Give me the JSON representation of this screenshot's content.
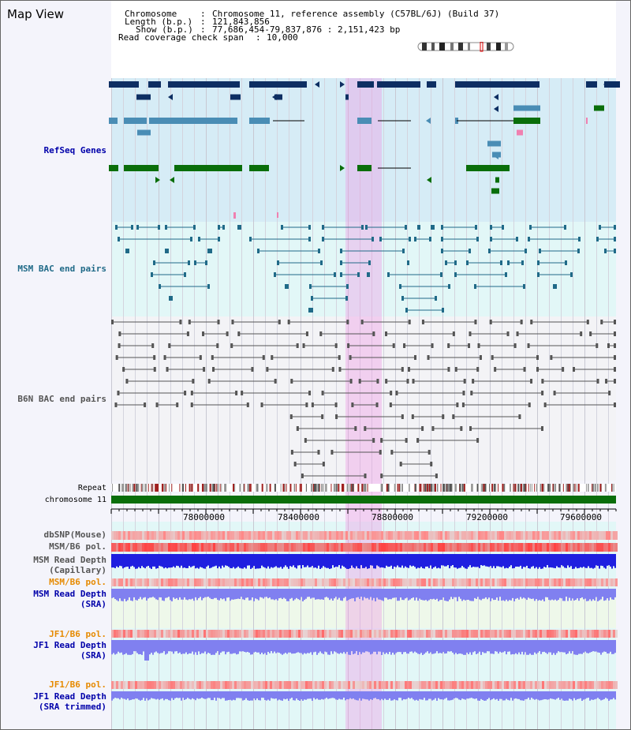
{
  "title": "Map View",
  "header": {
    "chromosome_key": "Chromosome",
    "chromosome_val": "Chromosome 11, reference assembly (C57BL/6J) (Build 37)",
    "length_key": "Length (b.p.)",
    "length_val": "121,843,856",
    "show_key": "Show (b.p.)",
    "show_val": "77,686,454-79,837,876 : 2,151,423 bp",
    "coverage_key": "Read coverage check span",
    "coverage_val": "10,000"
  },
  "lanes": {
    "refseq": "RefSeq Genes",
    "msm_bac": "MSM BAC end pairs",
    "b6n_bac": "B6N BAC end pairs",
    "repeat": "Repeat",
    "chromosome": "chromosome 11",
    "dbsnp": "dbSNP(Mouse)",
    "msm_b6_pol": "MSM/B6 pol.",
    "msm_depth_cap_1": "MSM Read Depth",
    "msm_depth_cap_2": "(Capillary)",
    "msm_b6_pol_2": "MSM/B6 pol.",
    "msm_depth_sra_1": "MSM Read Depth",
    "msm_depth_sra_2": "(SRA)",
    "jf1_b6_pol": "JF1/B6 pol.",
    "jf1_depth_sra_1": "JF1 Read Depth",
    "jf1_depth_sra_2": "(SRA)",
    "jf1_b6_pol_2": "JF1/B6 pol.",
    "jf1_depth_trim_1": "JF1 Read Depth",
    "jf1_depth_trim_2": "(SRA trimmed)"
  },
  "axis_ticks": [
    "78000000",
    "78400000",
    "78800000",
    "79200000",
    "79600000"
  ],
  "colors": {
    "refseq_dark": "#0d2e62",
    "refseq_mid": "#4a8db5",
    "refseq_green": "#0a6e0a",
    "msm_line": "#206a88",
    "b6n_line": "#555555",
    "depth_blue": "#1f1fe0",
    "depth_light": "#8080f0",
    "pol_red": "#e83030",
    "label_blue": "#0000aa",
    "label_orange": "#e68a00",
    "highlight": "#f096e6"
  }
}
